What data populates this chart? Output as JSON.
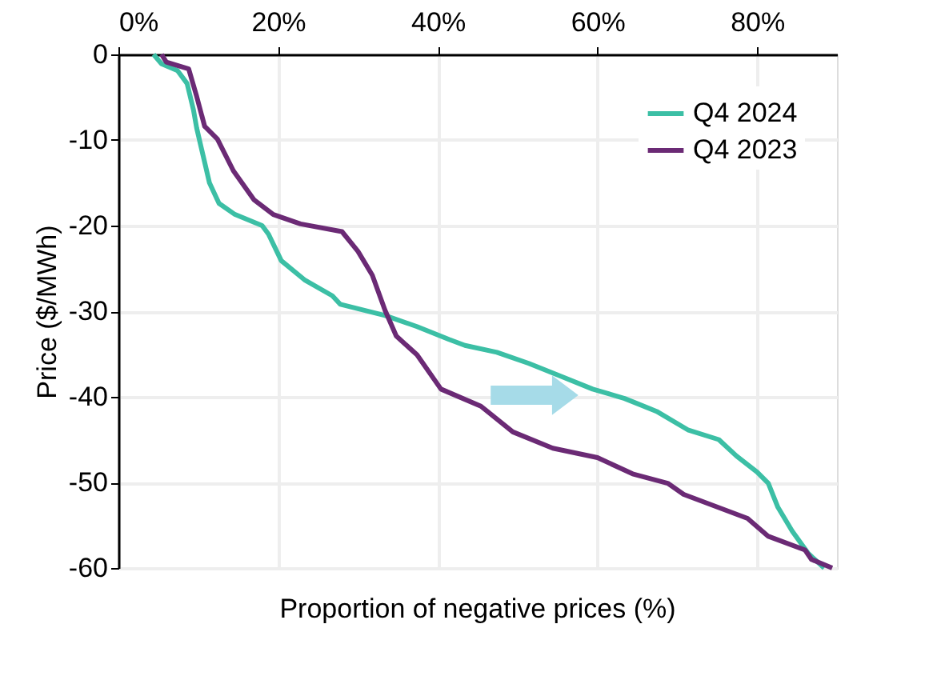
{
  "chart_data": {
    "type": "line",
    "xlabel": "Proportion of negative prices (%)",
    "ylabel": "Price ($/MWh)",
    "xlim": [
      0,
      90
    ],
    "xticks": [
      {
        "value": 0,
        "label": "0%"
      },
      {
        "value": 20,
        "label": "20%"
      },
      {
        "value": 40,
        "label": "40%"
      },
      {
        "value": 60,
        "label": "60%"
      },
      {
        "value": 80,
        "label": "80%"
      }
    ],
    "ylim": [
      -60,
      0
    ],
    "yticks": [
      0,
      -10,
      -20,
      -30,
      -40,
      -50,
      -60
    ],
    "grid": true,
    "legend": "top right",
    "line_style": "solid",
    "series": [
      {
        "name": "Q4 2024",
        "color": "#3cbfa5",
        "x": [
          4.4,
          5.4,
          7.4,
          8.6,
          9.4,
          9.8,
          10.6,
          11.4,
          12.6,
          14.6,
          18,
          18.8,
          20.4,
          23.4,
          26.8,
          27.8,
          33.4,
          37.4,
          41.4,
          43.4,
          47.4,
          51.4,
          55.4,
          59.4,
          63.4,
          67.4,
          71.4,
          75.2,
          77.4,
          80,
          81.4,
          82.6,
          84.4,
          86.4,
          88.4
        ],
        "values": [
          0,
          -1.1,
          -1.9,
          -3.4,
          -6.5,
          -8.6,
          -11.8,
          -15,
          -17.4,
          -18.7,
          -20,
          -21,
          -24.1,
          -26.4,
          -28.2,
          -29.2,
          -30.5,
          -31.8,
          -33.3,
          -34,
          -34.8,
          -36.1,
          -37.6,
          -39.1,
          -40.2,
          -41.7,
          -43.9,
          -45,
          -46.9,
          -48.8,
          -50.1,
          -52.9,
          -55.7,
          -58.3,
          -60
        ]
      },
      {
        "name": "Q4 2023",
        "color": "#6b2a75",
        "x": [
          5.4,
          6,
          8.8,
          9.8,
          10.8,
          12.4,
          14.4,
          17,
          19.4,
          22.8,
          28,
          30,
          31.8,
          33.4,
          34.8,
          37.4,
          40.4,
          45.4,
          49.4,
          54.4,
          60,
          64.4,
          68.8,
          70.8,
          78.8,
          81.4,
          86,
          86.8,
          89.4
        ],
        "values": [
          0,
          -0.9,
          -1.7,
          -4.9,
          -8.4,
          -9.9,
          -13.6,
          -17,
          -18.7,
          -19.8,
          -20.7,
          -23,
          -25.8,
          -29.9,
          -32.9,
          -35.1,
          -39.1,
          -41.1,
          -44.1,
          -46,
          -47.1,
          -49,
          -50.1,
          -51.4,
          -54.2,
          -56.3,
          -57.9,
          -59,
          -60
        ]
      }
    ]
  }
}
